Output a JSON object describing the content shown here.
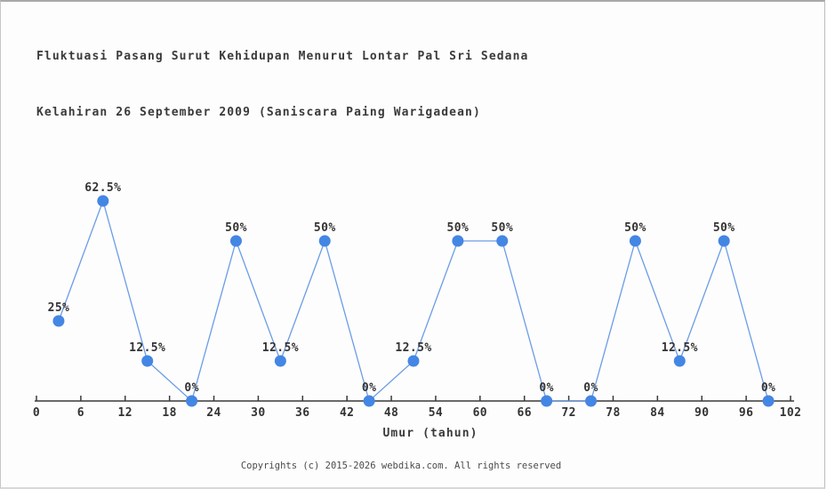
{
  "page": {
    "title_line1": "Fluktuasi Pasang Surut Kehidupan Menurut Lontar Pal Sri Sedana",
    "title_line2": "Kelahiran 26 September 2009 (Saniscara Paing Warigadean)",
    "footer": "Copyrights (c) 2015-2026 webdika.com. All rights reserved"
  },
  "chart_data": {
    "type": "line",
    "title": "Fluktuasi Pasang Surut Kehidupan Menurut Lontar Pal Sri Sedana Kelahiran 26 September 2009 (Saniscara Paing Warigadean)",
    "xlabel": "Umur (tahun)",
    "ylabel": "",
    "x": [
      3,
      9,
      15,
      21,
      27,
      33,
      39,
      45,
      51,
      57,
      63,
      69,
      75,
      81,
      87,
      93,
      99
    ],
    "values": [
      25,
      62.5,
      12.5,
      0,
      50,
      12.5,
      50,
      0,
      12.5,
      50,
      50,
      0,
      0,
      50,
      12.5,
      50,
      0
    ],
    "point_labels": [
      "25%",
      "62.5%",
      "12.5%",
      "0%",
      "50%",
      "12.5%",
      "50%",
      "0%",
      "12.5%",
      "50%",
      "50%",
      "0%",
      "0%",
      "50%",
      "12.5%",
      "50%",
      "0%"
    ],
    "x_ticks": [
      0,
      6,
      12,
      18,
      24,
      30,
      36,
      42,
      48,
      54,
      60,
      66,
      72,
      78,
      84,
      90,
      96,
      102
    ],
    "xlim": [
      0,
      102
    ],
    "ylim": [
      0,
      69.4
    ],
    "grid": false,
    "legend": null,
    "colors": {
      "marker": "#4486e4",
      "line": "#6b9ce6",
      "axis": "#3a3a3a",
      "label": "#333333"
    }
  }
}
